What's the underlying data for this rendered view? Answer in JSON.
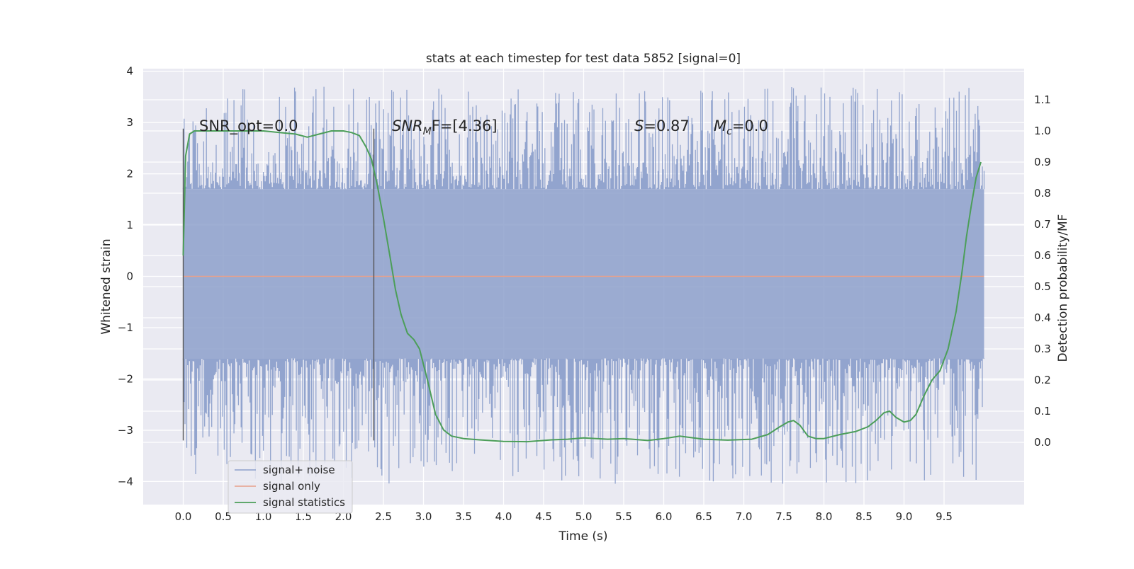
{
  "chart_data": {
    "type": "line",
    "title": "stats at each timestep for test data 5852 [signal=0]",
    "xlabel": "Time (s)",
    "ylabel": "Whitened strain",
    "y2label": "Detection probability/MF",
    "xlim": [
      -0.5,
      10.5
    ],
    "ylim": [
      -4.45,
      4.05
    ],
    "y2lim": [
      -0.2,
      1.2
    ],
    "x_ticks": [
      "0.0",
      "0.5",
      "1.0",
      "1.5",
      "2.0",
      "2.5",
      "3.0",
      "3.5",
      "4.0",
      "4.5",
      "5.0",
      "5.5",
      "6.0",
      "6.5",
      "7.0",
      "7.5",
      "8.0",
      "8.5",
      "9.0",
      "9.5"
    ],
    "y_ticks": [
      "−4",
      "−3",
      "−2",
      "−1",
      "0",
      "1",
      "2",
      "3",
      "4"
    ],
    "y2_ticks": [
      "0.0",
      "0.1",
      "0.2",
      "0.3",
      "0.4",
      "0.5",
      "0.6",
      "0.7",
      "0.8",
      "0.9",
      "1.0",
      "1.1"
    ],
    "grid": true,
    "legend_position": "lower-left",
    "annotations": {
      "snr_opt": "SNR_opt=0.0",
      "snr_mf_italic": "SNR",
      "snr_mf_sub": "M",
      "snr_mf_rest": "F=[4.36]",
      "s_italic": "S",
      "s_rest": "=0.87",
      "mc_italic": "M",
      "mc_sub": "c",
      "mc_rest": "=0.0"
    },
    "vertical_markers": [
      0.0,
      2.38
    ],
    "series": [
      {
        "name": "signal+ noise",
        "color": "#8da0cb",
        "axis": "left",
        "x_range": [
          0.0,
          10.0
        ],
        "typical_band": [
          -1.6,
          1.7
        ],
        "max_excursion": [
          -4.05,
          3.7
        ]
      },
      {
        "name": "signal only",
        "color": "#e8a08a",
        "axis": "left",
        "x": [
          0.0,
          10.0
        ],
        "y": [
          0.0,
          0.0
        ]
      },
      {
        "name": "signal statistics",
        "color": "#4c9e59",
        "axis": "right",
        "x": [
          0.0,
          0.03,
          0.08,
          0.14,
          0.2,
          0.3,
          0.5,
          0.8,
          1.0,
          1.2,
          1.4,
          1.55,
          1.7,
          1.85,
          2.0,
          2.1,
          2.2,
          2.28,
          2.35,
          2.42,
          2.5,
          2.58,
          2.65,
          2.72,
          2.8,
          2.88,
          2.95,
          3.05,
          3.15,
          3.25,
          3.35,
          3.5,
          3.7,
          4.0,
          4.3,
          4.6,
          4.8,
          5.0,
          5.3,
          5.5,
          5.8,
          6.0,
          6.2,
          6.5,
          6.8,
          7.1,
          7.3,
          7.45,
          7.55,
          7.62,
          7.7,
          7.8,
          7.9,
          8.0,
          8.2,
          8.4,
          8.55,
          8.65,
          8.75,
          8.82,
          8.9,
          9.0,
          9.08,
          9.15,
          9.25,
          9.35,
          9.45,
          9.55,
          9.65,
          9.72,
          9.78,
          9.84,
          9.9,
          9.96
        ],
        "y": [
          0.6,
          0.92,
          0.99,
          1.0,
          1.0,
          1.0,
          1.0,
          1.0,
          1.0,
          0.995,
          0.99,
          0.98,
          0.99,
          1.0,
          1.0,
          0.995,
          0.985,
          0.95,
          0.91,
          0.83,
          0.72,
          0.6,
          0.49,
          0.41,
          0.35,
          0.33,
          0.3,
          0.2,
          0.09,
          0.04,
          0.02,
          0.012,
          0.008,
          0.003,
          0.002,
          0.008,
          0.01,
          0.014,
          0.01,
          0.012,
          0.006,
          0.012,
          0.02,
          0.01,
          0.007,
          0.01,
          0.025,
          0.05,
          0.065,
          0.07,
          0.055,
          0.02,
          0.012,
          0.012,
          0.025,
          0.035,
          0.05,
          0.07,
          0.095,
          0.1,
          0.08,
          0.065,
          0.07,
          0.09,
          0.15,
          0.2,
          0.23,
          0.3,
          0.42,
          0.54,
          0.66,
          0.76,
          0.85,
          0.9
        ]
      }
    ]
  }
}
